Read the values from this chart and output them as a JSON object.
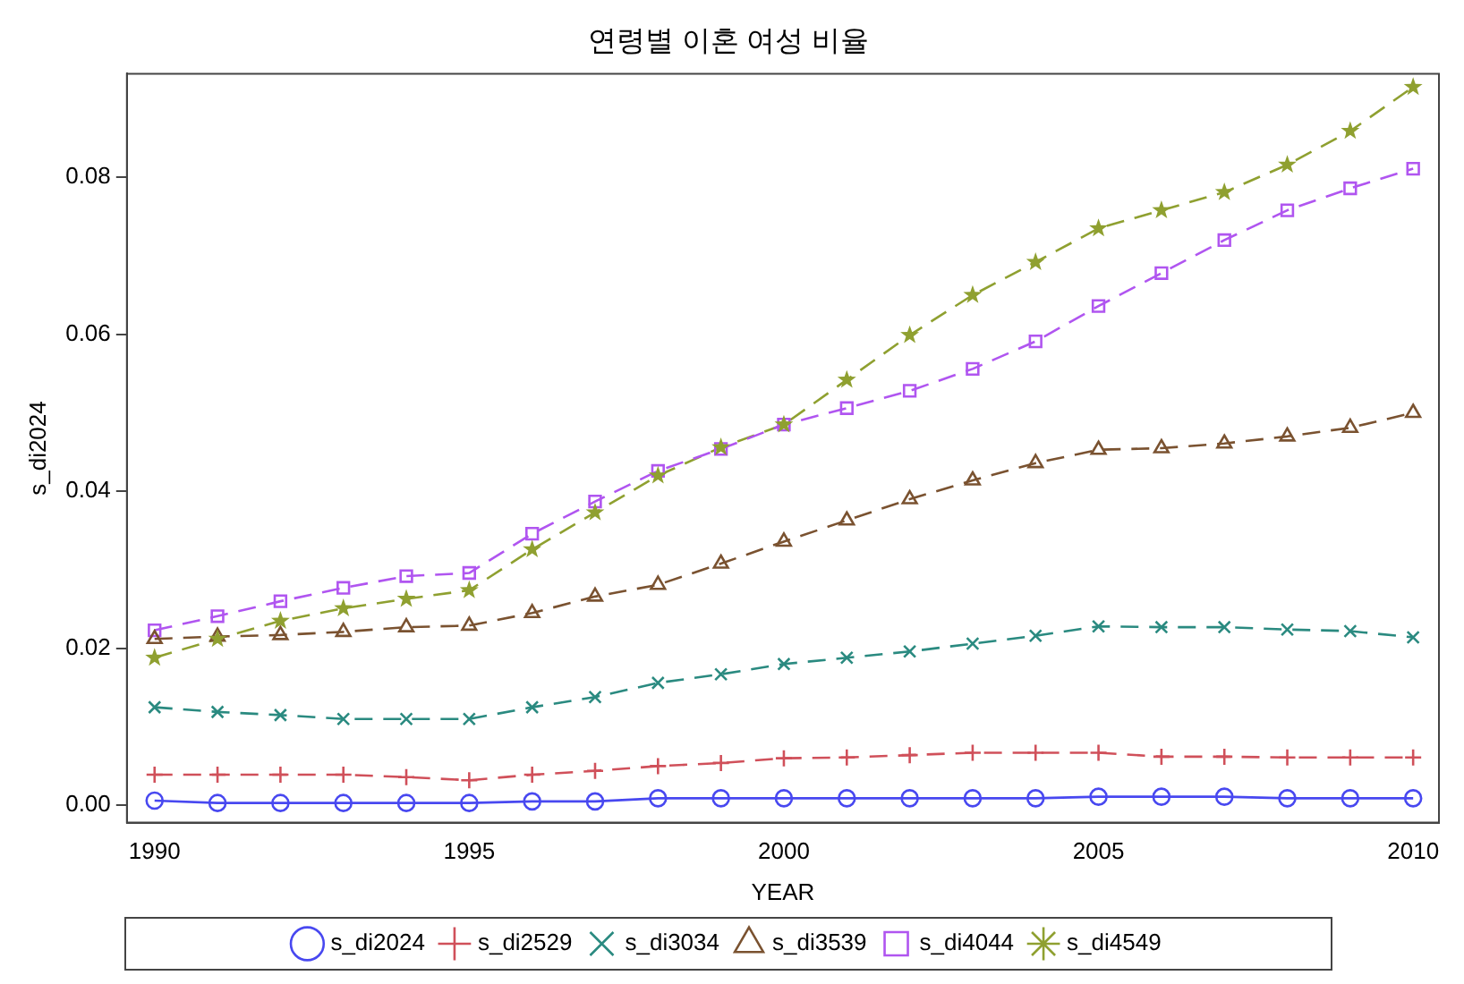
{
  "chart_data": {
    "type": "line",
    "title": "연령별 이혼 여성 비율",
    "xlabel": "YEAR",
    "ylabel": "s_di2024",
    "x": [
      1990,
      1991,
      1992,
      1993,
      1994,
      1995,
      1996,
      1997,
      1998,
      1999,
      2000,
      2001,
      2002,
      2003,
      2004,
      2005,
      2006,
      2007,
      2008,
      2009,
      2010
    ],
    "xlim": [
      1989.56,
      2010.41
    ],
    "xticks": [
      1990,
      1995,
      2000,
      2005,
      2010
    ],
    "ylim": [
      -0.0022,
      0.0932
    ],
    "yticks": [
      {
        "value": 0,
        "label": "0.00"
      },
      {
        "value": 0.02,
        "label": "0.02"
      },
      {
        "value": 0.04,
        "label": "0.04"
      },
      {
        "value": 0.06,
        "label": "0.06"
      },
      {
        "value": 0.08,
        "label": "0.08"
      }
    ],
    "grid": false,
    "legend": "bottom",
    "series": [
      {
        "name": "s_di2024",
        "color": "#4848f0",
        "marker": "circle",
        "line_style": "solid",
        "values": [
          0.0006,
          0.0003,
          0.0003,
          0.0003,
          0.0003,
          0.0003,
          0.0005,
          0.0005,
          0.0009,
          0.0009,
          0.0009,
          0.0009,
          0.0009,
          0.0009,
          0.0009,
          0.0011,
          0.0011,
          0.0011,
          0.0009,
          0.0009,
          0.0009
        ]
      },
      {
        "name": "s_di2529",
        "color": "#d0505a",
        "marker": "cross",
        "line_style": "dashed",
        "values": [
          0.0039,
          0.0039,
          0.0039,
          0.0039,
          0.0036,
          0.0032,
          0.0039,
          0.0044,
          0.005,
          0.0054,
          0.006,
          0.0061,
          0.0064,
          0.0067,
          0.0067,
          0.0067,
          0.0062,
          0.0062,
          0.0061,
          0.0061,
          0.0061
        ]
      },
      {
        "name": "s_di3034",
        "color": "#2a8a80",
        "marker": "x",
        "line_style": "dashed",
        "values": [
          0.0125,
          0.0119,
          0.0115,
          0.011,
          0.011,
          0.011,
          0.0125,
          0.0138,
          0.0156,
          0.0167,
          0.018,
          0.0188,
          0.0196,
          0.0206,
          0.0216,
          0.0228,
          0.0227,
          0.0227,
          0.0224,
          0.0222,
          0.0214
        ]
      },
      {
        "name": "s_di3539",
        "color": "#7a5230",
        "marker": "triangle",
        "line_style": "dashed",
        "values": [
          0.0212,
          0.0215,
          0.0217,
          0.0221,
          0.0227,
          0.0229,
          0.0245,
          0.0266,
          0.0281,
          0.0308,
          0.0336,
          0.0363,
          0.039,
          0.0414,
          0.0436,
          0.0453,
          0.0455,
          0.0461,
          0.047,
          0.0481,
          0.05
        ]
      },
      {
        "name": "s_di4044",
        "color": "#b055f0",
        "marker": "square",
        "line_style": "dashed",
        "values": [
          0.0223,
          0.0241,
          0.026,
          0.0277,
          0.0292,
          0.0296,
          0.0346,
          0.0387,
          0.0426,
          0.0454,
          0.0485,
          0.0506,
          0.0528,
          0.0556,
          0.0591,
          0.0636,
          0.0678,
          0.072,
          0.0758,
          0.0786,
          0.0811
        ]
      },
      {
        "name": "s_di4549",
        "color": "#8fa030",
        "marker": "star",
        "line_style": "dashed",
        "values": [
          0.0188,
          0.0212,
          0.0235,
          0.0251,
          0.0263,
          0.0274,
          0.0326,
          0.0373,
          0.042,
          0.0456,
          0.0485,
          0.0542,
          0.0599,
          0.065,
          0.0692,
          0.0735,
          0.0758,
          0.0781,
          0.0816,
          0.0859,
          0.0915
        ]
      }
    ]
  }
}
